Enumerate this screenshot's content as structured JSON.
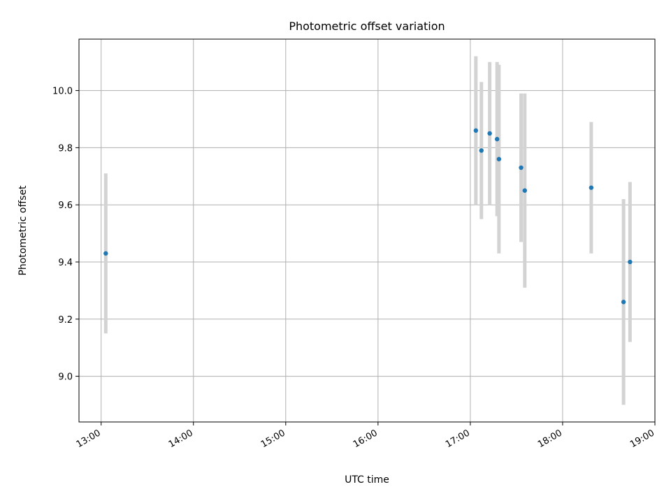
{
  "chart_data": {
    "type": "scatter",
    "title": "Photometric offset variation",
    "xlabel": "UTC time",
    "ylabel": "Photometric offset",
    "x_tick_labels": [
      "13:00",
      "14:00",
      "15:00",
      "16:00",
      "17:00",
      "18:00",
      "19:00"
    ],
    "x_ticks_hours": [
      13,
      14,
      15,
      16,
      17,
      18,
      19
    ],
    "xlim_hours": [
      12.76,
      19.0
    ],
    "y_ticks": [
      9.0,
      9.2,
      9.4,
      9.6,
      9.8,
      10.0
    ],
    "y_tick_labels": [
      "9.0",
      "9.2",
      "9.4",
      "9.6",
      "9.8",
      "10.0"
    ],
    "ylim": [
      8.84,
      10.18
    ],
    "grid": true,
    "colors": {
      "points": "#1f77b4",
      "errorbars": "#d3d3d3",
      "grid": "#b0b0b0"
    },
    "points": [
      {
        "time_hours": 13.05,
        "y": 9.43,
        "err": 0.28
      },
      {
        "time_hours": 17.06,
        "y": 9.86,
        "err": 0.26
      },
      {
        "time_hours": 17.12,
        "y": 9.79,
        "err": 0.24
      },
      {
        "time_hours": 17.21,
        "y": 9.85,
        "err": 0.25
      },
      {
        "time_hours": 17.29,
        "y": 9.83,
        "err": 0.27
      },
      {
        "time_hours": 17.31,
        "y": 9.76,
        "err": 0.33
      },
      {
        "time_hours": 17.55,
        "y": 9.73,
        "err": 0.26
      },
      {
        "time_hours": 17.59,
        "y": 9.65,
        "err": 0.34
      },
      {
        "time_hours": 18.31,
        "y": 9.66,
        "err": 0.23
      },
      {
        "time_hours": 18.66,
        "y": 9.26,
        "err": 0.36
      },
      {
        "time_hours": 18.73,
        "y": 9.4,
        "err": 0.28
      }
    ]
  }
}
